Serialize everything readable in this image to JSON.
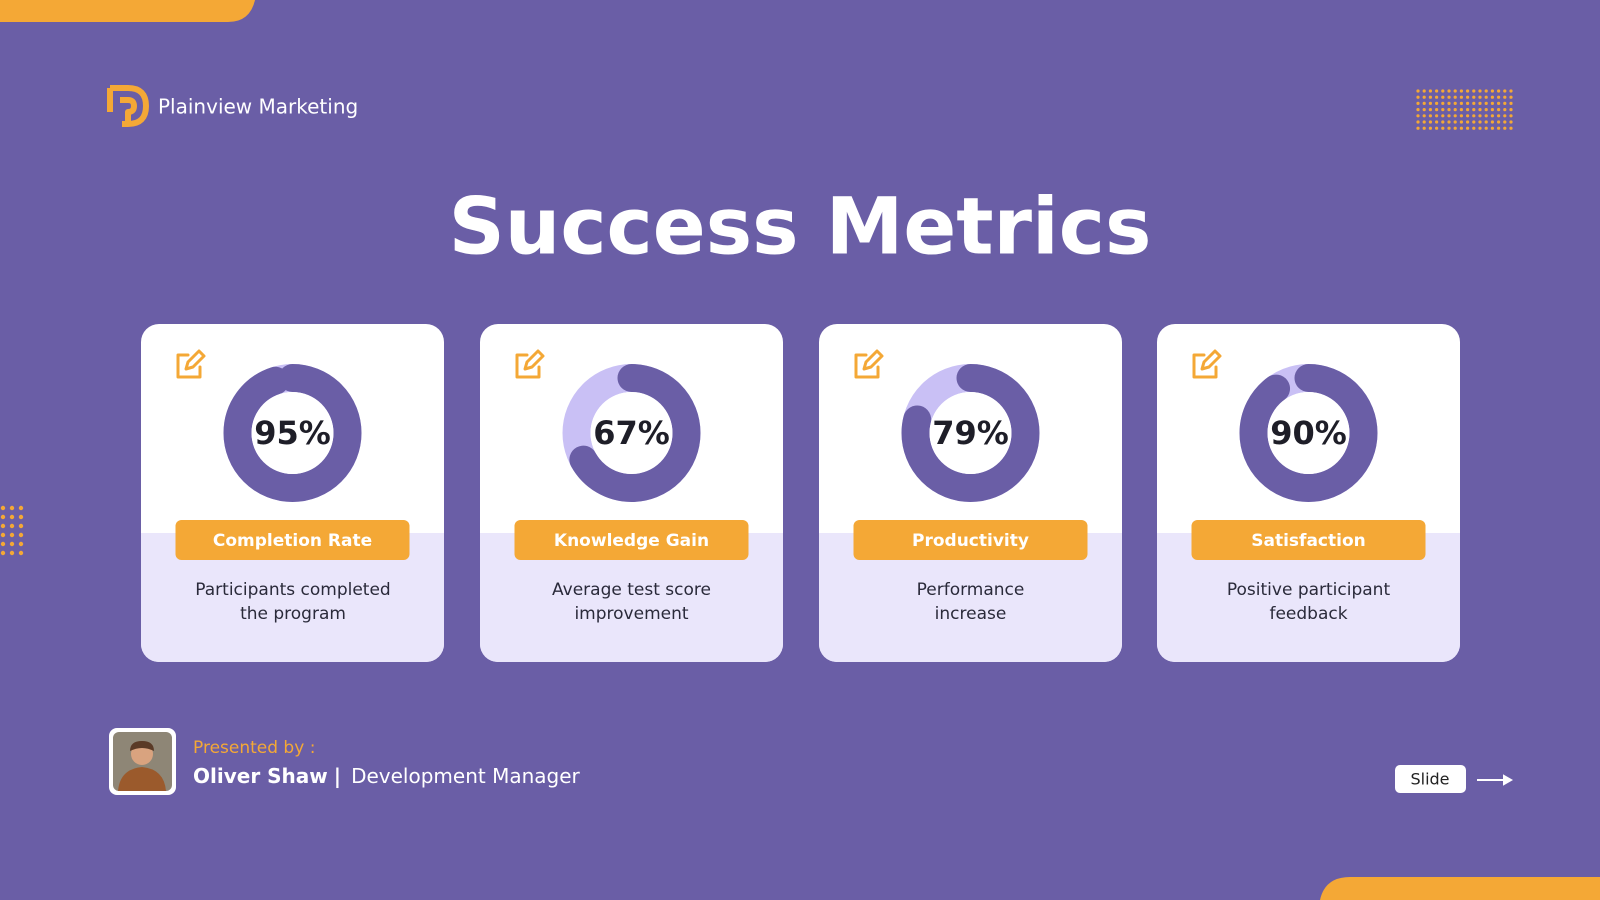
{
  "header": {
    "brand": "Plainview Marketing",
    "title": "Success Metrics"
  },
  "cards": [
    {
      "value": 95,
      "value_label": "95%",
      "label": "Completion Rate",
      "description": "Participants completed the program"
    },
    {
      "value": 67,
      "value_label": "67%",
      "label": "Knowledge Gain",
      "description": "Average test score improvement"
    },
    {
      "value": 79,
      "value_label": "79%",
      "label": "Productivity",
      "description": "Performance increase"
    },
    {
      "value": 90,
      "value_label": "90%",
      "label": "Satisfaction",
      "description": "Positive participant feedback"
    }
  ],
  "footer": {
    "presented_by": "Presented by :",
    "name": "Oliver Shaw",
    "separator": "|",
    "role": "Development Manager",
    "button": "Slide"
  }
}
